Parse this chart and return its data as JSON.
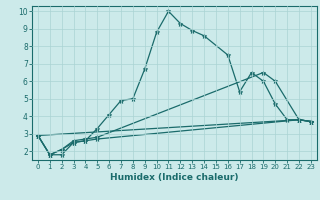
{
  "xlabel": "Humidex (Indice chaleur)",
  "bg_color": "#cceaea",
  "line_color": "#1a6b6b",
  "grid_color": "#aad4d4",
  "xlim": [
    -0.5,
    23.5
  ],
  "ylim": [
    1.5,
    10.3
  ],
  "yticks": [
    2,
    3,
    4,
    5,
    6,
    7,
    8,
    9,
    10
  ],
  "xticks": [
    0,
    1,
    2,
    3,
    4,
    5,
    6,
    7,
    8,
    9,
    10,
    11,
    12,
    13,
    14,
    15,
    16,
    17,
    18,
    19,
    20,
    21,
    22,
    23
  ],
  "lines": [
    {
      "x": [
        0,
        1,
        2,
        3,
        4,
        5,
        6,
        7,
        8,
        9,
        10,
        11,
        12,
        13,
        14,
        16,
        17,
        18,
        19,
        20,
        21,
        22,
        23
      ],
      "y": [
        2.9,
        1.8,
        1.8,
        2.5,
        2.6,
        3.3,
        4.1,
        4.9,
        5.0,
        6.7,
        8.8,
        10.0,
        9.3,
        8.9,
        8.6,
        7.5,
        5.4,
        6.5,
        6.0,
        4.7,
        3.8,
        3.8,
        3.7
      ]
    },
    {
      "x": [
        0,
        1,
        2,
        3,
        4,
        5,
        19,
        20,
        22,
        23
      ],
      "y": [
        2.9,
        1.8,
        2.1,
        2.6,
        2.7,
        2.8,
        6.5,
        6.0,
        3.8,
        3.7
      ]
    },
    {
      "x": [
        0,
        1,
        2,
        3,
        4,
        5,
        22,
        23
      ],
      "y": [
        2.9,
        1.8,
        2.1,
        2.5,
        2.6,
        2.7,
        3.8,
        3.7
      ]
    },
    {
      "x": [
        0,
        22,
        23
      ],
      "y": [
        2.9,
        3.8,
        3.7
      ]
    }
  ]
}
